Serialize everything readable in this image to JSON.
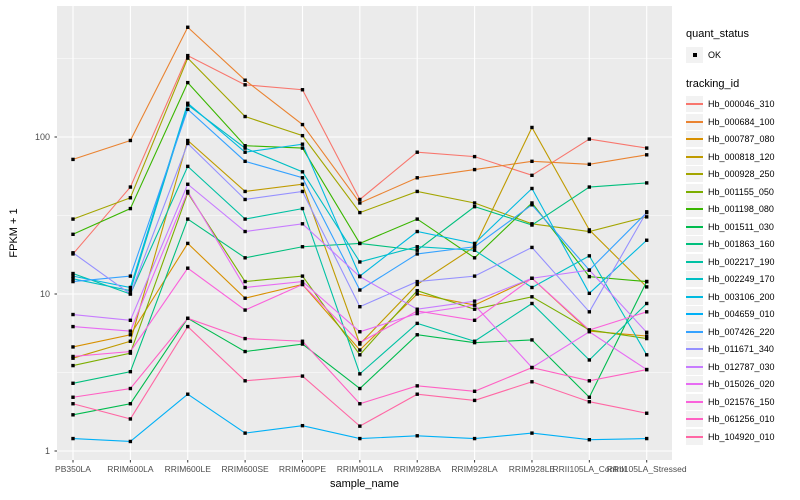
{
  "colors": {
    "panel_bg": "#EBEBEB",
    "grid": "#FFFFFF",
    "legend_key_bg": "#F2F2F2",
    "tick_label": "#4D4D4D",
    "point": "#000000"
  },
  "legend": {
    "quant_status_title": "quant_status",
    "quant_status_value": "OK",
    "tracking_title": "tracking_id"
  },
  "chart_data": {
    "type": "line",
    "title": "",
    "xlabel": "sample_name",
    "ylabel": "FPKM + 1",
    "y_scale": "log10",
    "y_ticks": [
      1,
      10,
      100
    ],
    "ylim": [
      1,
      700
    ],
    "grid": "on",
    "legend_position": "right",
    "point_shape": "square",
    "x_categories": [
      "PB350LA",
      "RRIM600LA",
      "RRIM600LE",
      "RRIM600SE",
      "RRIM600PE",
      "RRIM901LA",
      "RRIM928BA",
      "RRIM928LA",
      "RRIM928LE",
      "RRII105LA_Control",
      "RRII105LA_Stressed"
    ],
    "series": [
      {
        "name": "Hb_000046_310",
        "color": "#F8766D",
        "values": [
          18,
          48,
          330,
          215,
          200,
          40,
          80,
          75,
          57,
          97,
          85
        ]
      },
      {
        "name": "Hb_000684_100",
        "color": "#EA8331",
        "values": [
          72,
          95,
          500,
          230,
          120,
          38,
          55,
          62,
          70,
          67,
          77
        ]
      },
      {
        "name": "Hb_000787_080",
        "color": "#D89000",
        "values": [
          4.6,
          5.5,
          21,
          9.4,
          11.5,
          4.4,
          10,
          8.5,
          12.6,
          5.8,
          5.4
        ]
      },
      {
        "name": "Hb_000818_120",
        "color": "#C09B00",
        "values": [
          3.9,
          5.0,
          95,
          45,
          50,
          4.8,
          11.5,
          20,
          115,
          25.6,
          11.1
        ]
      },
      {
        "name": "Hb_000928_250",
        "color": "#A3A500",
        "values": [
          30,
          41,
          318,
          135,
          102,
          33,
          45,
          38,
          28,
          25,
          31
        ]
      },
      {
        "name": "Hb_001155_050",
        "color": "#7CAE00",
        "values": [
          3.5,
          4.2,
          44,
          12,
          13,
          4.1,
          10.5,
          8.0,
          9.6,
          5.9,
          5.2
        ]
      },
      {
        "name": "Hb_001198_080",
        "color": "#39B600",
        "values": [
          24,
          35,
          222,
          88,
          85,
          21,
          30,
          17,
          38,
          12.9,
          12.0
        ]
      },
      {
        "name": "Hb_001511_030",
        "color": "#00BB4E",
        "values": [
          1.7,
          2.0,
          7.0,
          4.3,
          4.8,
          2.5,
          5.5,
          4.9,
          5.1,
          2.2,
          12.0
        ]
      },
      {
        "name": "Hb_001863_160",
        "color": "#00BF7D",
        "values": [
          2.7,
          3.2,
          30,
          17,
          20,
          21,
          19,
          36,
          27.5,
          48,
          51
        ]
      },
      {
        "name": "Hb_002217_190",
        "color": "#00C1A3",
        "values": [
          13.5,
          10,
          65,
          30,
          35,
          3.1,
          6.5,
          5.0,
          8.7,
          3.8,
          8.7
        ]
      },
      {
        "name": "Hb_002249_170",
        "color": "#00BFC4",
        "values": [
          12.5,
          10.5,
          160,
          85,
          60,
          16,
          20,
          19,
          11,
          17.5,
          4.1
        ]
      },
      {
        "name": "Hb_003106_200",
        "color": "#00BAE0",
        "values": [
          13,
          11,
          164,
          80,
          90,
          13,
          25,
          21,
          47,
          10.1,
          22
        ]
      },
      {
        "name": "Hb_004659_010",
        "color": "#00B0F6",
        "values": [
          1.2,
          1.15,
          2.3,
          1.3,
          1.45,
          1.2,
          1.25,
          1.2,
          1.3,
          1.18,
          1.2
        ]
      },
      {
        "name": "Hb_007426_220",
        "color": "#35A2FF",
        "values": [
          12,
          13,
          150,
          70,
          55,
          10.6,
          18,
          20,
          37,
          14.2,
          33
        ]
      },
      {
        "name": "Hb_011671_340",
        "color": "#9590FF",
        "values": [
          18.3,
          10,
          91,
          40,
          45,
          8.3,
          12,
          13,
          19.8,
          7.7,
          33.4
        ]
      },
      {
        "name": "Hb_012787_030",
        "color": "#C77CFF",
        "values": [
          7.4,
          6.8,
          50,
          25,
          28,
          12.9,
          8,
          9,
          12.6,
          14.2,
          5.7
        ]
      },
      {
        "name": "Hb_015026_020",
        "color": "#E76BF3",
        "values": [
          6.2,
          5.8,
          45,
          11,
          12,
          5.75,
          7.5,
          8.5,
          3.4,
          5.75,
          3.3
        ]
      },
      {
        "name": "Hb_021576_150",
        "color": "#FA62DB",
        "values": [
          4.0,
          4.3,
          14.6,
          7.9,
          11.5,
          4.9,
          7.8,
          6.8,
          12.6,
          5.9,
          7.7
        ]
      },
      {
        "name": "Hb_061256_010",
        "color": "#FF61C3",
        "values": [
          2.2,
          2.5,
          7.0,
          5.2,
          5.0,
          2.0,
          2.6,
          2.4,
          3.4,
          2.8,
          3.3
        ]
      },
      {
        "name": "Hb_104920_010",
        "color": "#FF67A4",
        "values": [
          2.0,
          1.6,
          6.2,
          2.8,
          3.0,
          1.44,
          2.3,
          2.1,
          2.76,
          2.06,
          1.74
        ]
      }
    ]
  }
}
